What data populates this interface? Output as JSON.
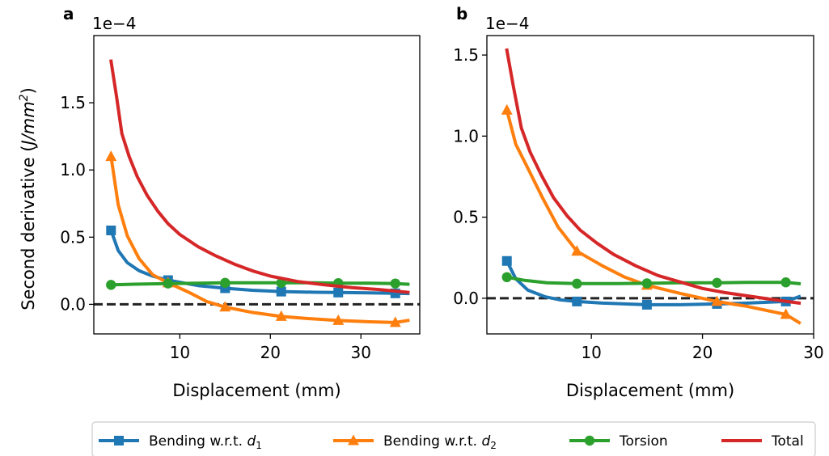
{
  "figure": {
    "ylabel_prefix": "Second derivative (",
    "ylabel_unit": "J/mm",
    "ylabel_power": "2",
    "ylabel_suffix": ")"
  },
  "legend": [
    {
      "label_prefix": "Bending w.r.t. ",
      "label_var": "d",
      "label_sub": "1",
      "color": "#1f77b4",
      "marker": "square"
    },
    {
      "label_prefix": "Bending w.r.t. ",
      "label_var": "d",
      "label_sub": "2",
      "color": "#ff7f0e",
      "marker": "triangle"
    },
    {
      "label_prefix": "Torsion",
      "label_var": "",
      "label_sub": "",
      "color": "#2ca02c",
      "marker": "circle"
    },
    {
      "label_prefix": "Total",
      "label_var": "",
      "label_sub": "",
      "color": "#d62728",
      "marker": "none"
    }
  ],
  "chart_data": [
    {
      "panel": "a",
      "type": "line",
      "offset_text": "1e−4",
      "xlabel": "Displacement (mm)",
      "xlim": [
        0.5,
        36.5
      ],
      "ylim": [
        -0.22,
        2.0
      ],
      "xticks": [
        10,
        20,
        30
      ],
      "yticks": [
        0.0,
        0.5,
        1.0,
        1.5
      ],
      "yticklabels": [
        "0.0",
        "0.5",
        "1.0",
        "1.5"
      ],
      "hline": 0,
      "series": [
        {
          "name": "Bending w.r.t. d1",
          "color": "#1f77b4",
          "marker": "square",
          "x": [
            2.4,
            3.2,
            4.2,
            5.5,
            7.0,
            8.7,
            12,
            15,
            18,
            21.2,
            25,
            27.5,
            31,
            33.8,
            35.2
          ],
          "y": [
            0.55,
            0.4,
            0.31,
            0.25,
            0.21,
            0.18,
            0.14,
            0.12,
            0.105,
            0.095,
            0.09,
            0.088,
            0.085,
            0.082,
            0.08
          ],
          "markers_x": [
            2.4,
            8.7,
            15,
            21.2,
            27.5,
            33.8
          ]
        },
        {
          "name": "Bending w.r.t. d2",
          "color": "#ff7f0e",
          "marker": "triangle",
          "x": [
            2.4,
            3.2,
            4.2,
            5.5,
            7.0,
            8.7,
            11,
            13,
            15,
            18,
            21.2,
            24,
            27.5,
            31,
            33.8,
            35.2
          ],
          "y": [
            1.1,
            0.74,
            0.51,
            0.34,
            0.22,
            0.16,
            0.09,
            0.02,
            -0.02,
            -0.06,
            -0.09,
            -0.105,
            -0.12,
            -0.13,
            -0.135,
            -0.12
          ],
          "markers_x": [
            2.4,
            8.7,
            15,
            21.2,
            27.5,
            33.8
          ]
        },
        {
          "name": "Torsion",
          "color": "#2ca02c",
          "marker": "circle",
          "x": [
            2.4,
            5,
            8.7,
            12,
            15,
            18,
            21.2,
            25,
            27.5,
            31,
            33.8,
            35.2
          ],
          "y": [
            0.145,
            0.15,
            0.155,
            0.158,
            0.16,
            0.16,
            0.16,
            0.16,
            0.158,
            0.157,
            0.155,
            0.15
          ],
          "markers_x": [
            2.4,
            8.7,
            15,
            21.2,
            27.5,
            33.8
          ]
        },
        {
          "name": "Total",
          "color": "#d62728",
          "marker": "none",
          "x": [
            2.4,
            3.0,
            3.6,
            4.4,
            5.3,
            6.4,
            7.6,
            8.7,
            10,
            12,
            14,
            16,
            18,
            20,
            23,
            26,
            29,
            32,
            35.2
          ],
          "y": [
            1.81,
            1.55,
            1.27,
            1.1,
            0.95,
            0.81,
            0.69,
            0.6,
            0.52,
            0.43,
            0.36,
            0.3,
            0.25,
            0.21,
            0.17,
            0.145,
            0.125,
            0.11,
            0.09
          ],
          "markers_x": []
        }
      ]
    },
    {
      "panel": "b",
      "type": "line",
      "offset_text": "1e−4",
      "xlabel": "Displacement (mm)",
      "xlim": [
        0.6,
        30.0
      ],
      "ylim": [
        -0.22,
        1.62
      ],
      "xticks": [
        10,
        20,
        30
      ],
      "yticks": [
        0.0,
        0.5,
        1.0,
        1.5
      ],
      "yticklabels": [
        "0.0",
        "0.5",
        "1.0",
        "1.5"
      ],
      "hline": 0,
      "series": [
        {
          "name": "Bending w.r.t. d1",
          "color": "#1f77b4",
          "marker": "square",
          "x": [
            2.4,
            3.2,
            4.3,
            5.8,
            7.2,
            8.7,
            11,
            15,
            18,
            21.3,
            24,
            27.5,
            28.7
          ],
          "y": [
            0.23,
            0.12,
            0.05,
            0.01,
            -0.01,
            -0.02,
            -0.03,
            -0.04,
            -0.04,
            -0.035,
            -0.03,
            -0.02,
            0.01
          ],
          "markers_x": [
            2.4,
            8.7,
            15,
            21.3,
            27.5
          ]
        },
        {
          "name": "Bending w.r.t. d2",
          "color": "#ff7f0e",
          "marker": "triangle",
          "x": [
            2.4,
            3.2,
            4.3,
            5.6,
            7.0,
            8.7,
            11,
            13,
            15,
            18,
            21.3,
            24,
            27.5,
            28.7
          ],
          "y": [
            1.16,
            0.95,
            0.8,
            0.62,
            0.44,
            0.29,
            0.2,
            0.13,
            0.08,
            0.03,
            -0.02,
            -0.05,
            -0.1,
            -0.15
          ],
          "markers_x": [
            2.4,
            8.7,
            15,
            21.3,
            27.5
          ]
        },
        {
          "name": "Torsion",
          "color": "#2ca02c",
          "marker": "circle",
          "x": [
            2.4,
            4,
            6,
            8.7,
            12,
            15,
            18,
            21.3,
            24,
            27.5,
            28.7
          ],
          "y": [
            0.13,
            0.11,
            0.095,
            0.09,
            0.09,
            0.092,
            0.095,
            0.095,
            0.098,
            0.098,
            0.09
          ],
          "markers_x": [
            2.4,
            8.7,
            15,
            21.3,
            27.5
          ]
        },
        {
          "name": "Total",
          "color": "#d62728",
          "marker": "none",
          "x": [
            2.4,
            3.0,
            3.7,
            4.5,
            5.5,
            6.6,
            7.8,
            9,
            10.5,
            12,
            14,
            16,
            18,
            20,
            22,
            24,
            26,
            28.7
          ],
          "y": [
            1.53,
            1.3,
            1.05,
            0.9,
            0.76,
            0.62,
            0.51,
            0.42,
            0.34,
            0.27,
            0.2,
            0.14,
            0.1,
            0.06,
            0.035,
            0.015,
            -0.005,
            -0.03
          ],
          "markers_x": []
        }
      ]
    }
  ]
}
